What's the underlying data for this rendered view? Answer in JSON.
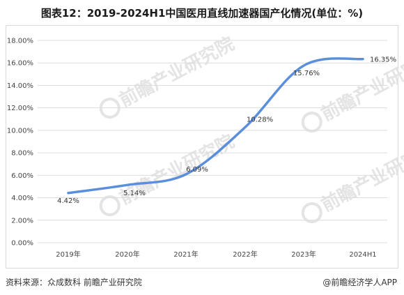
{
  "title": "图表12：2019-2024H1中国医用直线加速器国产化情况(单位：%)",
  "footer": {
    "source": "资料来源：众成数科 前瞻产业研究院",
    "brand": "@前瞻经济学人APP"
  },
  "watermark": {
    "text": "前瞻产业研究院",
    "icon": "qianzhan-logo-icon"
  },
  "chart_data": {
    "type": "line",
    "title": "图表12：2019-2024H1中国医用直线加速器国产化情况(单位：%)",
    "categories": [
      "2019年",
      "2020年",
      "2021年",
      "2022年",
      "2023年",
      "2024H1"
    ],
    "series": [
      {
        "values": [
          4.42,
          5.14,
          6.09,
          10.28,
          15.76,
          16.35
        ],
        "labels": [
          "4.42%",
          "5.14%",
          "6.09%",
          "10.28%",
          "15.76%",
          "16.35%"
        ],
        "color": "#5b8fdc"
      }
    ],
    "ylim": [
      0,
      18
    ],
    "yticks": [
      "0.00%",
      "2.00%",
      "4.00%",
      "6.00%",
      "8.00%",
      "10.00%",
      "12.00%",
      "14.00%",
      "16.00%",
      "18.00%"
    ],
    "grid": true,
    "legend": false,
    "xlabel": "",
    "ylabel": ""
  }
}
